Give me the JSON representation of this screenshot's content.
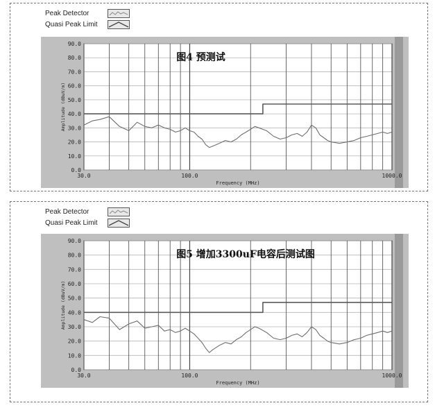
{
  "legend": {
    "peak_detector": "Peak Detector",
    "quasi_peak_limit": "Quasi Peak Limit"
  },
  "chart_data": [
    {
      "type": "line",
      "title": "图4 预测试",
      "xlabel": "Frequency (MHz)",
      "ylabel": "Amplitude (dBuV/m)",
      "x_scale": "log",
      "xlim": [
        30,
        1000
      ],
      "ylim": [
        0,
        90
      ],
      "x_ticks": [
        "30.0",
        "100.0",
        "1000.0"
      ],
      "y_ticks": [
        "0.0",
        "10.0",
        "20.0",
        "30.0",
        "40.0",
        "50.0",
        "60.0",
        "70.0",
        "80.0",
        "90.0"
      ],
      "grid": true,
      "legend_position": "top-left",
      "colors": {
        "plot_bg": "#ffffff",
        "frame": "#bfbfbf",
        "trace": "#6e6e6e",
        "limit": "#5a5a5a"
      },
      "series": [
        {
          "name": "Quasi Peak Limit",
          "x": [
            30,
            230,
            230,
            1000
          ],
          "y": [
            40,
            40,
            47,
            47
          ]
        },
        {
          "name": "Peak Detector",
          "x": [
            30,
            33,
            36,
            40,
            45,
            50,
            55,
            60,
            65,
            70,
            75,
            80,
            85,
            90,
            95,
            100,
            105,
            110,
            115,
            120,
            125,
            130,
            140,
            150,
            160,
            170,
            180,
            190,
            200,
            210,
            220,
            240,
            260,
            280,
            300,
            320,
            340,
            360,
            380,
            400,
            420,
            440,
            460,
            480,
            500,
            550,
            600,
            650,
            700,
            750,
            800,
            850,
            900,
            950,
            1000
          ],
          "y": [
            32,
            35,
            36,
            38,
            31,
            28,
            34,
            31,
            30,
            32,
            30,
            29,
            27,
            28,
            30,
            28,
            27,
            24,
            22,
            18,
            16,
            17,
            19,
            21,
            20,
            22,
            25,
            27,
            29,
            31,
            30,
            28,
            24,
            22,
            23,
            25,
            26,
            24,
            27,
            32,
            30,
            25,
            23,
            21,
            20,
            19,
            20,
            21,
            23,
            24,
            25,
            26,
            27,
            26,
            27
          ]
        }
      ]
    },
    {
      "type": "line",
      "title": "图5 增加3300uF电容后测试图",
      "xlabel": "Frequency (MHz)",
      "ylabel": "Amplitude (dBuV/m)",
      "x_scale": "log",
      "xlim": [
        30,
        1000
      ],
      "ylim": [
        0,
        90
      ],
      "x_ticks": [
        "30.0",
        "100.0",
        "1000.0"
      ],
      "y_ticks": [
        "0.0",
        "10.0",
        "20.0",
        "30.0",
        "40.0",
        "50.0",
        "60.0",
        "70.0",
        "80.0",
        "90.0"
      ],
      "grid": true,
      "legend_position": "top-left",
      "colors": {
        "plot_bg": "#ffffff",
        "frame": "#bfbfbf",
        "trace": "#6e6e6e",
        "limit": "#5a5a5a"
      },
      "series": [
        {
          "name": "Quasi Peak Limit",
          "x": [
            30,
            230,
            230,
            1000
          ],
          "y": [
            40,
            40,
            47,
            47
          ]
        },
        {
          "name": "Peak Detector",
          "x": [
            30,
            33,
            36,
            40,
            45,
            50,
            55,
            60,
            65,
            70,
            75,
            80,
            85,
            90,
            95,
            100,
            105,
            110,
            115,
            120,
            125,
            130,
            140,
            150,
            160,
            170,
            180,
            190,
            200,
            210,
            220,
            240,
            260,
            280,
            300,
            320,
            340,
            360,
            380,
            400,
            420,
            440,
            460,
            480,
            500,
            550,
            600,
            650,
            700,
            750,
            800,
            850,
            900,
            950,
            1000
          ],
          "y": [
            35,
            33,
            37,
            36,
            28,
            32,
            34,
            29,
            30,
            31,
            27,
            28,
            26,
            27,
            29,
            27,
            25,
            22,
            19,
            15,
            12,
            14,
            17,
            19,
            18,
            21,
            23,
            26,
            28,
            30,
            29,
            26,
            22,
            21,
            22,
            24,
            25,
            23,
            26,
            30,
            28,
            24,
            22,
            20,
            19,
            18,
            19,
            21,
            22,
            24,
            25,
            26,
            27,
            26,
            27
          ]
        }
      ]
    }
  ]
}
